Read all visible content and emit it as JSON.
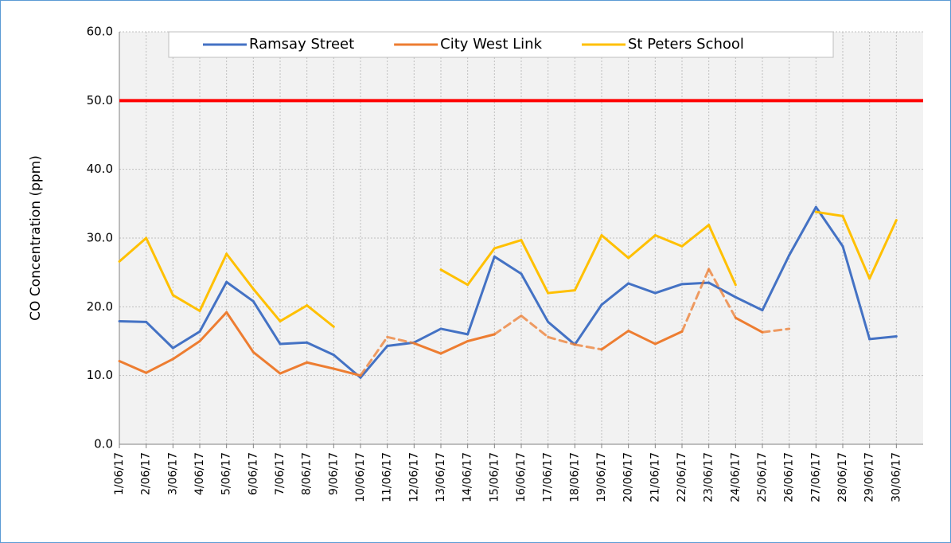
{
  "chart_data": {
    "type": "line",
    "y_label": "CO Concentration (ppm)",
    "categories": [
      "1/06/17",
      "2/06/17",
      "3/06/17",
      "4/06/17",
      "5/06/17",
      "6/06/17",
      "7/06/17",
      "8/06/17",
      "9/06/17",
      "10/06/17",
      "11/06/17",
      "12/06/17",
      "13/06/17",
      "14/06/17",
      "15/06/17",
      "16/06/17",
      "17/06/17",
      "18/06/17",
      "19/06/17",
      "20/06/17",
      "21/06/17",
      "22/06/17",
      "23/06/17",
      "24/06/17",
      "25/06/17",
      "26/06/17",
      "27/06/17",
      "28/06/17",
      "29/06/17",
      "30/06/17"
    ],
    "series": [
      {
        "name": "Ramsay Street",
        "color": "#4472c4",
        "values": [
          17.9,
          17.8,
          14.0,
          16.4,
          23.6,
          20.8,
          14.6,
          14.8,
          13.0,
          9.7,
          14.3,
          14.8,
          16.8,
          16.0,
          27.3,
          24.8,
          17.8,
          14.5,
          20.3,
          23.4,
          22.0,
          23.3,
          23.5,
          21.4,
          19.5,
          27.5,
          34.5,
          28.8,
          15.3,
          15.7
        ]
      },
      {
        "name": "City West Link",
        "color": "#ed7d31",
        "values": [
          12.1,
          10.4,
          12.4,
          15.0,
          19.2,
          13.4,
          10.3,
          11.9,
          11.0,
          10.0,
          15.6,
          14.7,
          13.2,
          15.0,
          16.0,
          18.7,
          15.6,
          14.5,
          13.8,
          16.5,
          14.6,
          16.4,
          25.5,
          18.4,
          16.3,
          16.8,
          null,
          null,
          null,
          null
        ],
        "dashed": [
          false,
          false,
          false,
          false,
          false,
          false,
          false,
          false,
          false,
          false,
          true,
          false,
          false,
          false,
          false,
          true,
          true,
          true,
          false,
          false,
          false,
          false,
          true,
          false,
          false,
          true,
          false,
          false,
          false,
          false
        ]
      },
      {
        "name": "St Peters School",
        "color": "#ffc000",
        "values": [
          26.6,
          30.0,
          21.7,
          19.4,
          27.7,
          22.6,
          17.9,
          20.2,
          17.1,
          null,
          null,
          null,
          25.4,
          23.2,
          28.5,
          29.7,
          22.0,
          22.4,
          30.4,
          27.1,
          30.4,
          28.8,
          31.9,
          23.2,
          null,
          null,
          33.8,
          33.2,
          24.1,
          32.6
        ]
      }
    ],
    "ylim": [
      0,
      60
    ],
    "yticks": [
      {
        "value": 0,
        "label": "0.0"
      },
      {
        "value": 10,
        "label": "10.0"
      },
      {
        "value": 20,
        "label": "20.0"
      },
      {
        "value": 30,
        "label": "30.0"
      },
      {
        "value": 40,
        "label": "40.0"
      },
      {
        "value": 50,
        "label": "50.0"
      },
      {
        "value": 60,
        "label": "60.0"
      }
    ],
    "reference_line": {
      "value": 50,
      "color": "#ff0000"
    },
    "grid": true,
    "legend": "top"
  }
}
